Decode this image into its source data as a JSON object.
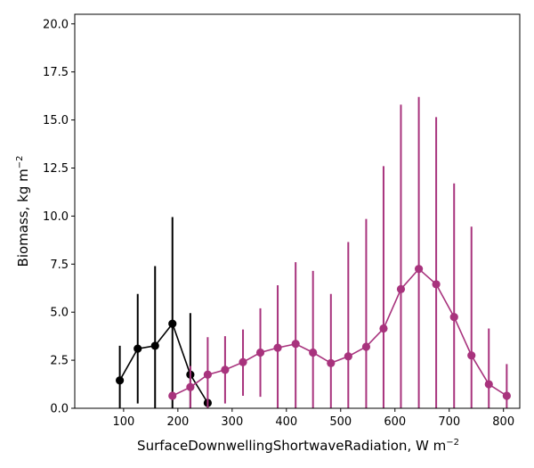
{
  "chart_data": {
    "type": "scatter",
    "title": "",
    "xlabel": "SurfaceDownwellingShortwaveRadiation,  W m",
    "xlabel_sup": "−2",
    "ylabel": "Biomass,  kg m",
    "ylabel_sup": "−2",
    "xlim": [
      10,
      830
    ],
    "ylim": [
      0,
      20.5
    ],
    "x_ticks": [
      100,
      200,
      300,
      400,
      500,
      600,
      700,
      800
    ],
    "x_tick_labels": [
      "100",
      "200",
      "300",
      "400",
      "500",
      "600",
      "700",
      "800"
    ],
    "y_ticks": [
      0,
      2.5,
      5,
      7.5,
      10,
      12.5,
      15,
      17.5,
      20
    ],
    "y_tick_labels": [
      "0.0",
      "2.5",
      "5.0",
      "7.5",
      "10.0",
      "12.5",
      "15.0",
      "17.5",
      "20.0"
    ],
    "grid": false,
    "legend": "none",
    "series": [
      {
        "color": "#000000",
        "points": [
          {
            "x": 93,
            "y": 1.45,
            "lo": 0,
            "hi": 3.25
          },
          {
            "x": 126,
            "y": 3.1,
            "lo": 0.25,
            "hi": 5.95
          },
          {
            "x": 158,
            "y": 3.25,
            "lo": 0,
            "hi": 7.4
          },
          {
            "x": 190,
            "y": 4.4,
            "lo": 0,
            "hi": 9.95
          },
          {
            "x": 223,
            "y": 1.75,
            "lo": 0,
            "hi": 4.95
          },
          {
            "x": 255,
            "y": 0.28,
            "lo": 0.2,
            "hi": 0.4
          }
        ]
      },
      {
        "color": "#a8337d",
        "points": [
          {
            "x": 190,
            "y": 0.65,
            "lo": 0.6,
            "hi": 0.7
          },
          {
            "x": 223,
            "y": 1.1,
            "lo": 0,
            "hi": 2.2
          },
          {
            "x": 255,
            "y": 1.75,
            "lo": 0,
            "hi": 3.7
          },
          {
            "x": 287,
            "y": 2.0,
            "lo": 0.25,
            "hi": 3.75
          },
          {
            "x": 320,
            "y": 2.4,
            "lo": 0.65,
            "hi": 4.1
          },
          {
            "x": 352,
            "y": 2.9,
            "lo": 0.6,
            "hi": 5.2
          },
          {
            "x": 384,
            "y": 3.15,
            "lo": 0,
            "hi": 6.4
          },
          {
            "x": 417,
            "y": 3.35,
            "lo": 0,
            "hi": 7.6
          },
          {
            "x": 449,
            "y": 2.9,
            "lo": 0,
            "hi": 7.15
          },
          {
            "x": 482,
            "y": 2.35,
            "lo": 0,
            "hi": 5.95
          },
          {
            "x": 514,
            "y": 2.7,
            "lo": 0,
            "hi": 8.65
          },
          {
            "x": 547,
            "y": 3.2,
            "lo": 0,
            "hi": 9.85
          },
          {
            "x": 579,
            "y": 4.15,
            "lo": 0,
            "hi": 12.6
          },
          {
            "x": 611,
            "y": 6.2,
            "lo": 0,
            "hi": 15.8
          },
          {
            "x": 644,
            "y": 7.25,
            "lo": 0,
            "hi": 16.2
          },
          {
            "x": 676,
            "y": 6.45,
            "lo": 0,
            "hi": 15.15
          },
          {
            "x": 709,
            "y": 4.75,
            "lo": 0,
            "hi": 11.7
          },
          {
            "x": 741,
            "y": 2.75,
            "lo": 0,
            "hi": 9.45
          },
          {
            "x": 773,
            "y": 1.25,
            "lo": 0,
            "hi": 4.15
          },
          {
            "x": 806,
            "y": 0.65,
            "lo": 0,
            "hi": 2.3
          }
        ]
      }
    ]
  }
}
